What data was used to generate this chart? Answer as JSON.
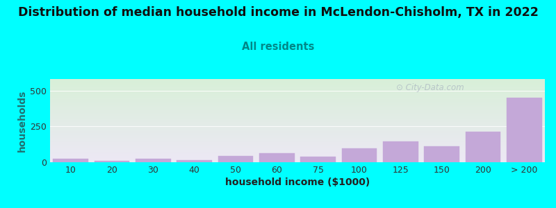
{
  "title": "Distribution of median household income in McLendon-Chisholm, TX in 2022",
  "subtitle": "All residents",
  "xlabel": "household income ($1000)",
  "ylabel": "households",
  "background_color": "#00FFFF",
  "bar_color": "#c4a8d8",
  "bar_edge_color": "#c4a8d8",
  "categories": [
    "10",
    "20",
    "30",
    "40",
    "50",
    "60",
    "75",
    "100",
    "125",
    "150",
    "200",
    "> 200"
  ],
  "values": [
    22,
    12,
    22,
    15,
    42,
    62,
    38,
    95,
    145,
    110,
    215,
    450
  ],
  "yticks": [
    0,
    250,
    500
  ],
  "ylim": [
    0,
    580
  ],
  "title_fontsize": 12.5,
  "subtitle_fontsize": 10.5,
  "axis_label_fontsize": 10,
  "tick_fontsize": 9,
  "watermark_text": "City-Data.com",
  "watermark_color": "#a0aabb",
  "watermark_alpha": 0.6,
  "plot_bg_top_color": "#d8f0d8",
  "plot_bg_bottom_color": "#ede8f5"
}
